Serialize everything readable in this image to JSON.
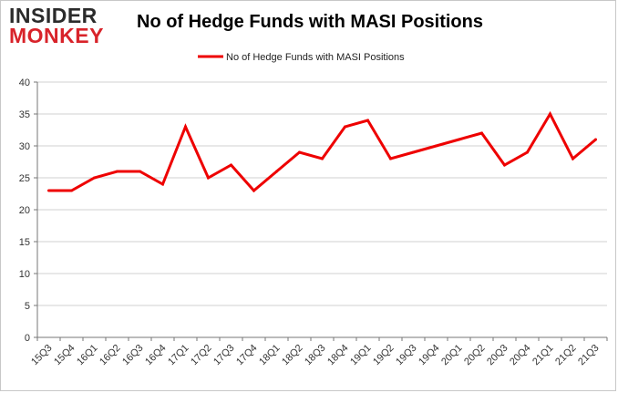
{
  "logo": {
    "line1": "INSIDER",
    "line2": "MONKEY"
  },
  "colors": {
    "series": "#ee0000",
    "grid": "#d0d0d0",
    "axis": "#777777"
  },
  "chart_data": {
    "type": "line",
    "title": "No of Hedge Funds with MASI Positions",
    "xlabel": "",
    "ylabel": "",
    "ylim": [
      0,
      40
    ],
    "yticks": [
      0,
      5,
      10,
      15,
      20,
      25,
      30,
      35,
      40
    ],
    "grid": "horizontal",
    "legend": "top-center",
    "categories": [
      "15Q3",
      "15Q4",
      "16Q1",
      "16Q2",
      "16Q3",
      "16Q4",
      "17Q1",
      "17Q2",
      "17Q3",
      "17Q4",
      "18Q1",
      "18Q2",
      "18Q3",
      "18Q4",
      "19Q1",
      "19Q2",
      "19Q3",
      "19Q4",
      "20Q1",
      "20Q2",
      "20Q3",
      "20Q4",
      "21Q1",
      "21Q2",
      "21Q3"
    ],
    "series": [
      {
        "name": "No of Hedge Funds with MASI Positions",
        "values": [
          23,
          23,
          25,
          26,
          26,
          24,
          33,
          25,
          27,
          23,
          26,
          29,
          28,
          33,
          34,
          28,
          29,
          30,
          31,
          32,
          27,
          29,
          35,
          28,
          31
        ]
      }
    ]
  }
}
